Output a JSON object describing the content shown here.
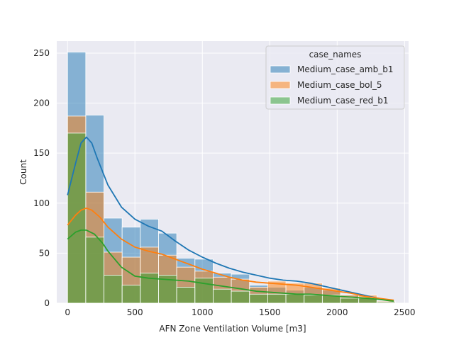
{
  "chart_data": {
    "type": "histogram",
    "stacked": true,
    "kde": true,
    "xlabel": "AFN Zone Ventilation Volume [m3]",
    "ylabel": "Count",
    "xlim": [
      -80,
      2530
    ],
    "ylim": [
      0,
      262
    ],
    "xticks": [
      0,
      500,
      1000,
      1500,
      2000,
      2500
    ],
    "yticks": [
      0,
      50,
      100,
      150,
      200,
      250
    ],
    "xtick_labels": [
      "0",
      "500",
      "1000",
      "1500",
      "2000",
      "2500"
    ],
    "ytick_labels": [
      "0",
      "50",
      "100",
      "150",
      "200",
      "250"
    ],
    "grid": true,
    "legend": {
      "title": "case_names",
      "position": "top-right"
    },
    "bin_edges": [
      0,
      135,
      270,
      405,
      540,
      675,
      810,
      945,
      1080,
      1215,
      1350,
      1485,
      1620,
      1755,
      1890,
      2025,
      2160,
      2295,
      2430
    ],
    "series": [
      {
        "name": "Medium_case_amb_b1",
        "color": "#1f77b4",
        "stack_tops": [
          251,
          188,
          85,
          76,
          84,
          70,
          45,
          44,
          30,
          29,
          18,
          16,
          13,
          16,
          13,
          8,
          6,
          2
        ],
        "kde": [
          [
            0,
            108
          ],
          [
            60,
            140
          ],
          [
            100,
            160
          ],
          [
            140,
            166
          ],
          [
            180,
            160
          ],
          [
            220,
            145
          ],
          [
            300,
            118
          ],
          [
            400,
            96
          ],
          [
            500,
            84
          ],
          [
            600,
            77
          ],
          [
            700,
            72
          ],
          [
            800,
            62
          ],
          [
            900,
            53
          ],
          [
            1000,
            46
          ],
          [
            1100,
            40
          ],
          [
            1200,
            35
          ],
          [
            1300,
            31
          ],
          [
            1400,
            28
          ],
          [
            1500,
            25
          ],
          [
            1600,
            23
          ],
          [
            1700,
            22
          ],
          [
            1800,
            20
          ],
          [
            1900,
            17
          ],
          [
            2000,
            14
          ],
          [
            2100,
            11
          ],
          [
            2200,
            8
          ],
          [
            2300,
            5
          ],
          [
            2420,
            2
          ]
        ]
      },
      {
        "name": "Medium_case_bol_5",
        "color": "#ff7f0e",
        "stack_tops": [
          187,
          111,
          51,
          46,
          56,
          48,
          36,
          32,
          26,
          24,
          16,
          22,
          20,
          20,
          15,
          8,
          8,
          2
        ],
        "kde": [
          [
            0,
            78
          ],
          [
            60,
            88
          ],
          [
            100,
            93
          ],
          [
            140,
            95
          ],
          [
            180,
            93
          ],
          [
            240,
            86
          ],
          [
            300,
            76
          ],
          [
            400,
            64
          ],
          [
            500,
            56
          ],
          [
            600,
            52
          ],
          [
            700,
            49
          ],
          [
            800,
            44
          ],
          [
            900,
            39
          ],
          [
            1000,
            34
          ],
          [
            1100,
            30
          ],
          [
            1200,
            26
          ],
          [
            1300,
            23
          ],
          [
            1400,
            21
          ],
          [
            1500,
            20
          ],
          [
            1600,
            19
          ],
          [
            1700,
            18
          ],
          [
            1800,
            16
          ],
          [
            1900,
            14
          ],
          [
            2000,
            12
          ],
          [
            2100,
            10
          ],
          [
            2200,
            7
          ],
          [
            2300,
            5
          ],
          [
            2420,
            3
          ]
        ]
      },
      {
        "name": "Medium_case_red_b1",
        "color": "#2ca02c",
        "stack_tops": [
          170,
          66,
          28,
          18,
          30,
          28,
          16,
          25,
          14,
          12,
          9,
          9,
          9,
          8,
          8,
          5,
          5,
          1
        ],
        "kde": [
          [
            0,
            64
          ],
          [
            60,
            71
          ],
          [
            100,
            73
          ],
          [
            140,
            73
          ],
          [
            200,
            69
          ],
          [
            260,
            60
          ],
          [
            300,
            52
          ],
          [
            400,
            36
          ],
          [
            500,
            27
          ],
          [
            600,
            25
          ],
          [
            700,
            24
          ],
          [
            800,
            23
          ],
          [
            900,
            22
          ],
          [
            1000,
            20
          ],
          [
            1100,
            18
          ],
          [
            1200,
            16
          ],
          [
            1300,
            14
          ],
          [
            1400,
            12
          ],
          [
            1500,
            11
          ],
          [
            1600,
            10
          ],
          [
            1700,
            9
          ],
          [
            1800,
            9
          ],
          [
            1900,
            8
          ],
          [
            2000,
            7
          ],
          [
            2100,
            6
          ],
          [
            2200,
            5
          ],
          [
            2300,
            4
          ],
          [
            2420,
            2
          ]
        ]
      }
    ]
  }
}
